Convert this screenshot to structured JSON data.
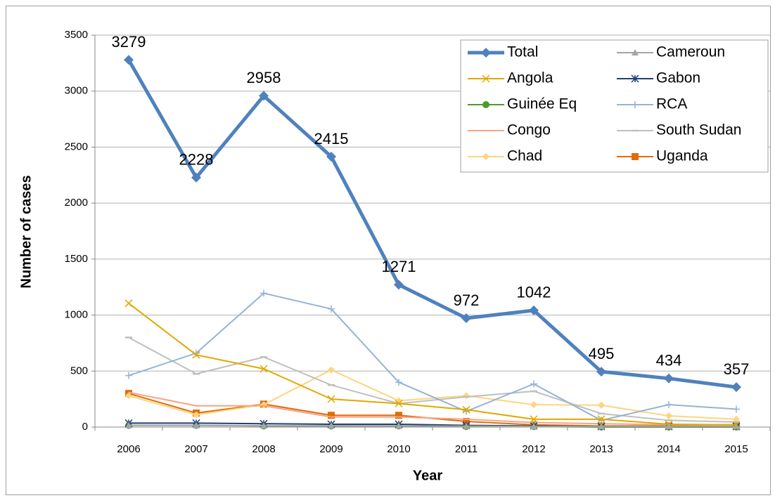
{
  "chart_data": {
    "type": "line",
    "x_label": "Year",
    "y_label": "Number of cases",
    "categories": [
      "2006",
      "2007",
      "2008",
      "2009",
      "2010",
      "2011",
      "2012",
      "2013",
      "2014",
      "2015"
    ],
    "ylim": [
      0,
      3500
    ],
    "yticks": [
      0,
      500,
      1000,
      1500,
      2000,
      2500,
      3000,
      3500
    ],
    "grid": true,
    "legend": "top-right",
    "series": [
      {
        "name": "Total",
        "color": "#4f81bd",
        "marker": "diamond",
        "width": 5,
        "labels": true,
        "values": [
          3279,
          2228,
          2958,
          2415,
          1271,
          972,
          1042,
          495,
          434,
          357
        ]
      },
      {
        "name": "Cameroun",
        "color": "#a5a5a5",
        "marker": "triangle",
        "values": [
          15,
          15,
          12,
          12,
          10,
          8,
          5,
          5,
          5,
          5
        ]
      },
      {
        "name": "Angola",
        "color": "#e0a800",
        "marker": "x",
        "values": [
          1105,
          645,
          520,
          250,
          210,
          155,
          70,
          70,
          25,
          20
        ]
      },
      {
        "name": "Gabon",
        "color": "#1f3e7a",
        "marker": "star",
        "values": [
          35,
          35,
          30,
          25,
          25,
          15,
          10,
          5,
          5,
          5
        ]
      },
      {
        "name": "Guinée Eq",
        "color": "#4e9a2a",
        "marker": "circle",
        "values": [
          15,
          15,
          10,
          10,
          10,
          5,
          5,
          0,
          0,
          0
        ]
      },
      {
        "name": "RCA",
        "color": "#95b3d7",
        "marker": "plus",
        "values": [
          460,
          660,
          1195,
          1055,
          400,
          140,
          385,
          60,
          200,
          160
        ]
      },
      {
        "name": "Congo",
        "color": "#f4a582",
        "marker": "none",
        "values": [
          310,
          190,
          190,
          90,
          90,
          70,
          40,
          30,
          20,
          20
        ]
      },
      {
        "name": "South Sudan",
        "color": "#bfbfbf",
        "marker": "dash",
        "values": [
          800,
          475,
          625,
          375,
          210,
          270,
          320,
          120,
          60,
          45
        ]
      },
      {
        "name": "Chad",
        "color": "#fcd57f",
        "marker": "diamond",
        "values": [
          280,
          110,
          200,
          510,
          235,
          280,
          200,
          195,
          100,
          70
        ]
      },
      {
        "name": "Uganda",
        "color": "#e26b0a",
        "marker": "square",
        "values": [
          300,
          125,
          205,
          105,
          105,
          50,
          20,
          10,
          10,
          5
        ]
      }
    ]
  }
}
